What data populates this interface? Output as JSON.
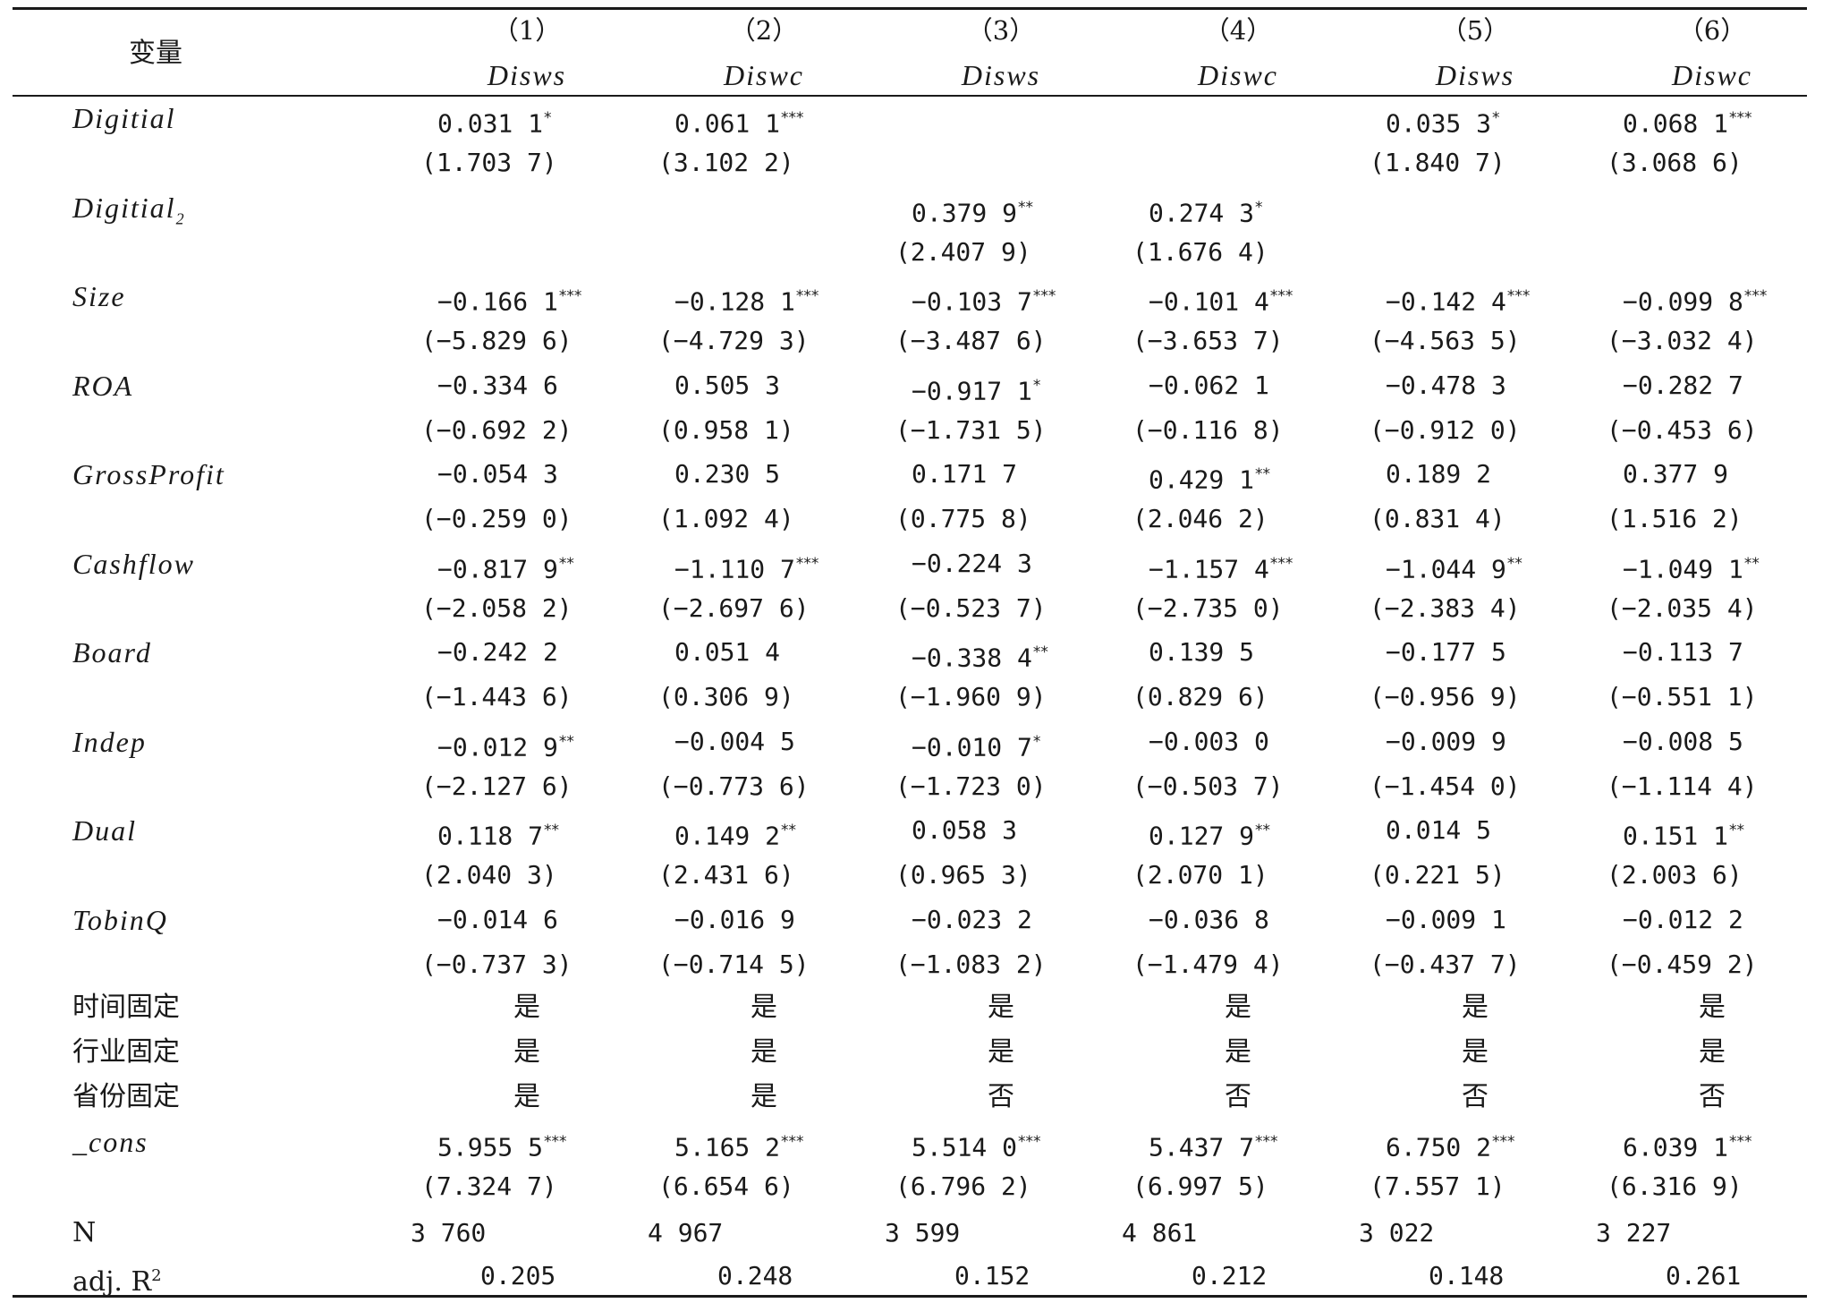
{
  "header": {
    "variable_label": "变量",
    "columns": [
      {
        "num": "（1）",
        "dep": "Disws"
      },
      {
        "num": "（2）",
        "dep": "Diswc"
      },
      {
        "num": "（3）",
        "dep": "Disws"
      },
      {
        "num": "（4）",
        "dep": "Diswc"
      },
      {
        "num": "（5）",
        "dep": "Disws"
      },
      {
        "num": "（6）",
        "dep": "Diswc"
      }
    ]
  },
  "rows": [
    {
      "label": "Digitial",
      "label_sub": "",
      "italic": true,
      "coef": [
        {
          "v": "0.031 1",
          "s": "*"
        },
        {
          "v": "0.061 1",
          "s": "***"
        },
        {
          "v": "",
          "s": ""
        },
        {
          "v": "",
          "s": ""
        },
        {
          "v": "0.035 3",
          "s": "*"
        },
        {
          "v": "0.068 1",
          "s": "***"
        }
      ],
      "t": [
        "(1.703 7)",
        "(3.102 2)",
        "",
        "",
        "(1.840 7)",
        "(3.068 6)"
      ]
    },
    {
      "label": "Digitial",
      "label_sub": "2",
      "italic": true,
      "coef": [
        {
          "v": "",
          "s": ""
        },
        {
          "v": "",
          "s": ""
        },
        {
          "v": "0.379 9",
          "s": "**"
        },
        {
          "v": "0.274 3",
          "s": "*"
        },
        {
          "v": "",
          "s": ""
        },
        {
          "v": "",
          "s": ""
        }
      ],
      "t": [
        "",
        "",
        "(2.407 9)",
        "(1.676 4)",
        "",
        ""
      ]
    },
    {
      "label": "Size",
      "label_sub": "",
      "italic": true,
      "coef": [
        {
          "v": "−0.166 1",
          "s": "***"
        },
        {
          "v": "−0.128 1",
          "s": "***"
        },
        {
          "v": "−0.103 7",
          "s": "***"
        },
        {
          "v": "−0.101 4",
          "s": "***"
        },
        {
          "v": "−0.142 4",
          "s": "***"
        },
        {
          "v": "−0.099 8",
          "s": "***"
        }
      ],
      "t": [
        "(−5.829 6)",
        "(−4.729 3)",
        "(−3.487 6)",
        "(−3.653 7)",
        "(−4.563 5)",
        "(−3.032 4)"
      ]
    },
    {
      "label": "ROA",
      "label_sub": "",
      "italic": true,
      "coef": [
        {
          "v": "−0.334 6",
          "s": ""
        },
        {
          "v": "0.505 3",
          "s": ""
        },
        {
          "v": "−0.917 1",
          "s": "*"
        },
        {
          "v": "−0.062 1",
          "s": ""
        },
        {
          "v": "−0.478 3",
          "s": ""
        },
        {
          "v": "−0.282 7",
          "s": ""
        }
      ],
      "t": [
        "(−0.692 2)",
        "(0.958 1)",
        "(−1.731 5)",
        "(−0.116 8)",
        "(−0.912 0)",
        "(−0.453 6)"
      ]
    },
    {
      "label": "GrossProfit",
      "label_sub": "",
      "italic": true,
      "coef": [
        {
          "v": "−0.054 3",
          "s": ""
        },
        {
          "v": "0.230 5",
          "s": ""
        },
        {
          "v": "0.171 7",
          "s": ""
        },
        {
          "v": "0.429 1",
          "s": "**"
        },
        {
          "v": "0.189 2",
          "s": ""
        },
        {
          "v": "0.377 9",
          "s": ""
        }
      ],
      "t": [
        "(−0.259 0)",
        "(1.092 4)",
        "(0.775 8)",
        "(2.046 2)",
        "(0.831 4)",
        "(1.516 2)"
      ]
    },
    {
      "label": "Cashflow",
      "label_sub": "",
      "italic": true,
      "coef": [
        {
          "v": "−0.817 9",
          "s": "**"
        },
        {
          "v": "−1.110 7",
          "s": "***"
        },
        {
          "v": "−0.224 3",
          "s": ""
        },
        {
          "v": "−1.157 4",
          "s": "***"
        },
        {
          "v": "−1.044 9",
          "s": "**"
        },
        {
          "v": "−1.049 1",
          "s": "**"
        }
      ],
      "t": [
        "(−2.058 2)",
        "(−2.697 6)",
        "(−0.523 7)",
        "(−2.735 0)",
        "(−2.383 4)",
        "(−2.035 4)"
      ]
    },
    {
      "label": "Board",
      "label_sub": "",
      "italic": true,
      "coef": [
        {
          "v": "−0.242 2",
          "s": ""
        },
        {
          "v": "0.051 4",
          "s": ""
        },
        {
          "v": "−0.338 4",
          "s": "**"
        },
        {
          "v": "0.139 5",
          "s": ""
        },
        {
          "v": "−0.177 5",
          "s": ""
        },
        {
          "v": "−0.113 7",
          "s": ""
        }
      ],
      "t": [
        "(−1.443 6)",
        "(0.306 9)",
        "(−1.960 9)",
        "(0.829 6)",
        "(−0.956 9)",
        "(−0.551 1)"
      ]
    },
    {
      "label": "Indep",
      "label_sub": "",
      "italic": true,
      "coef": [
        {
          "v": "−0.012 9",
          "s": "**"
        },
        {
          "v": "−0.004 5",
          "s": ""
        },
        {
          "v": "−0.010 7",
          "s": "*"
        },
        {
          "v": "−0.003 0",
          "s": ""
        },
        {
          "v": "−0.009 9",
          "s": ""
        },
        {
          "v": "−0.008 5",
          "s": ""
        }
      ],
      "t": [
        "(−2.127 6)",
        "(−0.773 6)",
        "(−1.723 0)",
        "(−0.503 7)",
        "(−1.454 0)",
        "(−1.114 4)"
      ]
    },
    {
      "label": "Dual",
      "label_sub": "",
      "italic": true,
      "coef": [
        {
          "v": "0.118 7",
          "s": "**"
        },
        {
          "v": "0.149 2",
          "s": "**"
        },
        {
          "v": "0.058 3",
          "s": ""
        },
        {
          "v": "0.127 9",
          "s": "**"
        },
        {
          "v": "0.014 5",
          "s": ""
        },
        {
          "v": "0.151 1",
          "s": "**"
        }
      ],
      "t": [
        "(2.040 3)",
        "(2.431 6)",
        "(0.965 3)",
        "(2.070 1)",
        "(0.221 5)",
        "(2.003 6)"
      ]
    },
    {
      "label": "TobinQ",
      "label_sub": "",
      "italic": true,
      "coef": [
        {
          "v": "−0.014 6",
          "s": ""
        },
        {
          "v": "−0.016 9",
          "s": ""
        },
        {
          "v": "−0.023 2",
          "s": ""
        },
        {
          "v": "−0.036 8",
          "s": ""
        },
        {
          "v": "−0.009 1",
          "s": ""
        },
        {
          "v": "−0.012 2",
          "s": ""
        }
      ],
      "t": [
        "(−0.737 3)",
        "(−0.714 5)",
        "(−1.083 2)",
        "(−1.479 4)",
        "(−0.437 7)",
        "(−0.459 2)"
      ]
    }
  ],
  "fixed_effects": [
    {
      "label": "时间固定",
      "values": [
        "是",
        "是",
        "是",
        "是",
        "是",
        "是"
      ]
    },
    {
      "label": "行业固定",
      "values": [
        "是",
        "是",
        "是",
        "是",
        "是",
        "是"
      ]
    },
    {
      "label": "省份固定",
      "values": [
        "是",
        "是",
        "否",
        "否",
        "否",
        "否"
      ]
    }
  ],
  "cons": {
    "label": "_cons",
    "coef": [
      {
        "v": "5.955 5",
        "s": "***"
      },
      {
        "v": "5.165 2",
        "s": "***"
      },
      {
        "v": "5.514 0",
        "s": "***"
      },
      {
        "v": "5.437 7",
        "s": "***"
      },
      {
        "v": "6.750 2",
        "s": "***"
      },
      {
        "v": "6.039 1",
        "s": "***"
      }
    ],
    "t": [
      "(7.324 7)",
      "(6.654 6)",
      "(6.796 2)",
      "(6.997 5)",
      "(7.557 1)",
      "(6.316 9)"
    ]
  },
  "n_row": {
    "label": "N",
    "values": [
      "3 760",
      "4 967",
      "3 599",
      "4 861",
      "3 022",
      "3 227"
    ]
  },
  "r2_row": {
    "label": "adj. R",
    "label_sup": "2",
    "values": [
      "0.205",
      "0.248",
      "0.152",
      "0.212",
      "0.148",
      "0.261"
    ]
  }
}
